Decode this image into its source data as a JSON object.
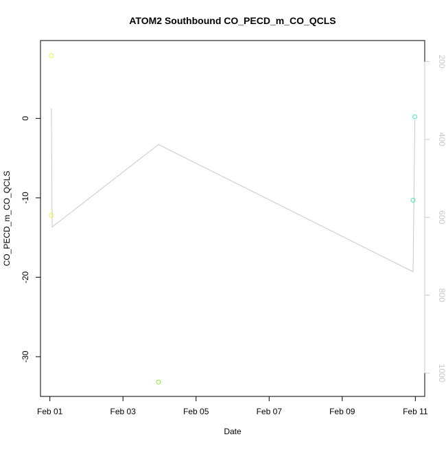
{
  "chart_data": {
    "type": "scatter",
    "title": "ATOM2 Southbound CO_PECD_m_CO_QCLS",
    "xlabel": "Date",
    "ylabel": "CO_PECD_m_CO_QCLS",
    "x_axis": {
      "type": "date",
      "range": [
        "2017-01-31T17:50",
        "2017-02-11T06:10"
      ],
      "ticks": [
        {
          "value": "2017-02-01",
          "label": "Feb 01"
        },
        {
          "value": "2017-02-03",
          "label": "Feb 03"
        },
        {
          "value": "2017-02-05",
          "label": "Feb 05"
        },
        {
          "value": "2017-02-07",
          "label": "Feb 07"
        },
        {
          "value": "2017-02-09",
          "label": "Feb 09"
        },
        {
          "value": "2017-02-11",
          "label": "Feb 11"
        }
      ]
    },
    "y_axis": {
      "range": [
        -35,
        9.8
      ],
      "ticks": [
        {
          "value": 0,
          "label": "0"
        },
        {
          "value": -10,
          "label": "-10"
        },
        {
          "value": -20,
          "label": "-20"
        },
        {
          "value": -30,
          "label": "-30"
        }
      ]
    },
    "y2_axis": {
      "label": "",
      "reversed": true,
      "range": [
        1060,
        146
      ],
      "color": "#c8c8c8",
      "ticks": [
        {
          "value": 200,
          "label": "200"
        },
        {
          "value": 400,
          "label": "400"
        },
        {
          "value": 600,
          "label": "600"
        },
        {
          "value": 800,
          "label": "800"
        },
        {
          "value": 1000,
          "label": "1000"
        }
      ]
    },
    "series": [
      {
        "type": "points",
        "points": [
          {
            "x": "2017-02-01T01:00",
            "y": 7.9,
            "color": "#e8f040"
          },
          {
            "x": "2017-02-01T01:00",
            "y": -12.2,
            "color": "#e8f040"
          },
          {
            "x": "2017-02-03T23:20",
            "y": -33.2,
            "color": "#88ee30"
          },
          {
            "x": "2017-02-10T22:30",
            "y": -10.3,
            "color": "#40eaa0"
          },
          {
            "x": "2017-02-10T23:40",
            "y": 0.2,
            "color": "#40eac0"
          }
        ]
      },
      {
        "type": "line",
        "axis": "y2",
        "color": "#c8c8c8",
        "points": [
          {
            "x": "2017-02-01T01:00",
            "y": 320
          },
          {
            "x": "2017-02-01T01:30",
            "y": 625
          },
          {
            "x": "2017-02-03T23:20",
            "y": 413
          },
          {
            "x": "2017-02-10T22:30",
            "y": 740
          },
          {
            "x": "2017-02-10T23:40",
            "y": 350
          }
        ]
      }
    ],
    "legend": "none",
    "grid": false
  }
}
